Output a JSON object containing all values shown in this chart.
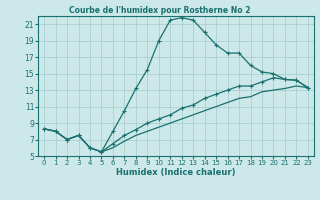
{
  "title": "Courbe de l'humidex pour Rostherne No 2",
  "xlabel": "Humidex (Indice chaleur)",
  "bg_color": "#cce8e8",
  "grid_color": "#aacece",
  "line_color": "#1a7070",
  "xlim": [
    -0.5,
    23.5
  ],
  "ylim": [
    5,
    22
  ],
  "xticks": [
    0,
    1,
    2,
    3,
    4,
    5,
    6,
    7,
    8,
    9,
    10,
    11,
    12,
    13,
    14,
    15,
    16,
    17,
    18,
    19,
    20,
    21,
    22,
    23
  ],
  "yticks": [
    5,
    7,
    9,
    11,
    13,
    15,
    17,
    19,
    21
  ],
  "line1_x": [
    0,
    1,
    2,
    3,
    4,
    5,
    6,
    7,
    8,
    9,
    10,
    11,
    12,
    13,
    14,
    15,
    16,
    17,
    18,
    19,
    20,
    21,
    22,
    23
  ],
  "line1_y": [
    8.3,
    8.0,
    7.0,
    7.5,
    6.0,
    5.5,
    8.0,
    10.5,
    13.2,
    15.5,
    19.0,
    21.5,
    21.8,
    21.5,
    20.0,
    18.5,
    17.5,
    17.5,
    16.0,
    15.2,
    15.0,
    14.3,
    14.2,
    13.3
  ],
  "line2_x": [
    0,
    1,
    2,
    3,
    4,
    5,
    6,
    7,
    8,
    9,
    10,
    11,
    12,
    13,
    14,
    15,
    16,
    17,
    18,
    19,
    20,
    21,
    22,
    23
  ],
  "line2_y": [
    8.3,
    8.0,
    7.0,
    7.5,
    6.0,
    5.5,
    6.5,
    7.5,
    8.2,
    9.0,
    9.5,
    10.0,
    10.8,
    11.2,
    12.0,
    12.5,
    13.0,
    13.5,
    13.5,
    14.0,
    14.5,
    14.3,
    14.2,
    13.3
  ],
  "line3_x": [
    0,
    1,
    2,
    3,
    4,
    5,
    6,
    7,
    8,
    9,
    10,
    11,
    12,
    13,
    14,
    15,
    16,
    17,
    18,
    19,
    20,
    21,
    22,
    23
  ],
  "line3_y": [
    8.3,
    8.0,
    7.0,
    7.5,
    6.0,
    5.5,
    6.0,
    6.8,
    7.5,
    8.0,
    8.5,
    9.0,
    9.5,
    10.0,
    10.5,
    11.0,
    11.5,
    12.0,
    12.2,
    12.8,
    13.0,
    13.2,
    13.5,
    13.3
  ]
}
